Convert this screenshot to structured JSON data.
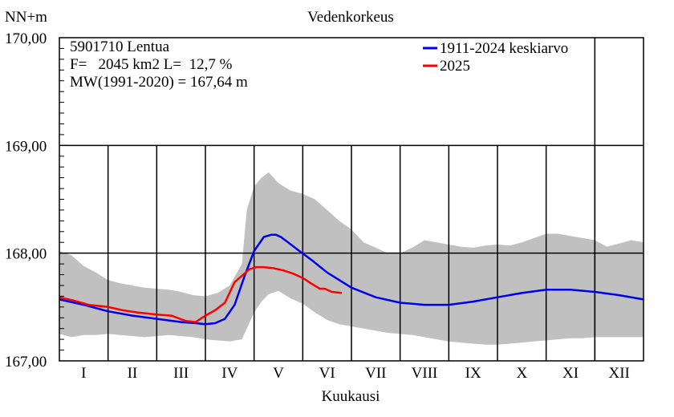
{
  "chart_data": {
    "type": "area",
    "title": "Vedenkorkeus",
    "ylabel": "NN+m",
    "xlabel": "Kuukausi",
    "ylim": [
      167.0,
      170.0
    ],
    "y_ticks": [
      {
        "value": 170.0,
        "label": "170,00"
      },
      {
        "value": 169.0,
        "label": "169,00"
      },
      {
        "value": 168.0,
        "label": "168,00"
      },
      {
        "value": 167.0,
        "label": "167,00"
      }
    ],
    "categories": [
      "I",
      "II",
      "III",
      "IV",
      "V",
      "VI",
      "VII",
      "VIII",
      "IX",
      "X",
      "XI",
      "XII"
    ],
    "info_lines": [
      "5901710 Lentua",
      "F=   2045 km2 L=  12,7 %",
      "MW(1991-2020) = 167,64 m"
    ],
    "grid": true,
    "legend_position": "top-right",
    "series": [
      {
        "name": "1911-2024 keskiarvo",
        "color": "#0000ee",
        "x": [
          0,
          0.5,
          1.0,
          1.5,
          2.0,
          2.5,
          2.8,
          3.0,
          3.2,
          3.4,
          3.6,
          3.8,
          4.0,
          4.2,
          4.35,
          4.45,
          4.55,
          4.7,
          4.9,
          5.2,
          5.5,
          6.0,
          6.5,
          7.0,
          7.5,
          8.0,
          8.5,
          9.0,
          9.5,
          10.0,
          10.5,
          11.0,
          11.5,
          12.0
        ],
        "values": [
          167.57,
          167.52,
          167.46,
          167.42,
          167.39,
          167.36,
          167.35,
          167.34,
          167.35,
          167.39,
          167.52,
          167.78,
          168.02,
          168.15,
          168.17,
          168.17,
          168.15,
          168.1,
          168.03,
          167.93,
          167.82,
          167.68,
          167.59,
          167.54,
          167.52,
          167.52,
          167.55,
          167.59,
          167.63,
          167.66,
          167.66,
          167.64,
          167.61,
          167.57
        ]
      },
      {
        "name": "2025",
        "color": "#ff0000",
        "x": [
          0,
          0.3,
          0.6,
          1.0,
          1.3,
          1.6,
          2.0,
          2.3,
          2.6,
          2.8,
          3.0,
          3.2,
          3.4,
          3.6,
          3.75,
          3.9,
          4.05,
          4.2,
          4.4,
          4.6,
          4.8,
          5.0,
          5.2,
          5.35,
          5.45,
          5.6,
          5.8
        ],
        "values": [
          167.59,
          167.56,
          167.52,
          167.5,
          167.47,
          167.45,
          167.43,
          167.42,
          167.37,
          167.36,
          167.42,
          167.47,
          167.54,
          167.73,
          167.79,
          167.85,
          167.87,
          167.87,
          167.86,
          167.84,
          167.81,
          167.77,
          167.71,
          167.67,
          167.67,
          167.64,
          167.63
        ]
      }
    ],
    "band": {
      "color": "#c0c0c0",
      "x": [
        0,
        0.25,
        0.5,
        0.75,
        1.0,
        1.25,
        1.5,
        1.75,
        2.0,
        2.25,
        2.5,
        2.75,
        3.0,
        3.25,
        3.5,
        3.75,
        3.85,
        4.0,
        4.15,
        4.3,
        4.5,
        4.75,
        5.0,
        5.25,
        5.5,
        5.75,
        6.0,
        6.25,
        6.5,
        6.75,
        7.0,
        7.25,
        7.5,
        7.75,
        8.0,
        8.25,
        8.5,
        8.75,
        9.0,
        9.25,
        9.5,
        9.75,
        10.0,
        10.25,
        10.5,
        10.75,
        11.0,
        11.25,
        11.5,
        11.75,
        12.0
      ],
      "upper": [
        168.02,
        167.98,
        167.88,
        167.82,
        167.75,
        167.72,
        167.7,
        167.68,
        167.67,
        167.66,
        167.64,
        167.61,
        167.6,
        167.63,
        167.7,
        167.9,
        168.4,
        168.62,
        168.7,
        168.75,
        168.65,
        168.58,
        168.55,
        168.5,
        168.4,
        168.3,
        168.22,
        168.1,
        168.05,
        168.0,
        168.0,
        168.05,
        168.12,
        168.1,
        168.08,
        168.06,
        168.05,
        168.07,
        168.08,
        168.07,
        168.1,
        168.14,
        168.18,
        168.18,
        168.16,
        168.14,
        168.12,
        168.06,
        168.09,
        168.12,
        168.1
      ],
      "lower": [
        167.25,
        167.22,
        167.24,
        167.24,
        167.25,
        167.24,
        167.23,
        167.22,
        167.23,
        167.24,
        167.23,
        167.22,
        167.2,
        167.19,
        167.18,
        167.2,
        167.3,
        167.45,
        167.55,
        167.62,
        167.65,
        167.58,
        167.53,
        167.45,
        167.38,
        167.34,
        167.32,
        167.3,
        167.28,
        167.26,
        167.25,
        167.24,
        167.22,
        167.2,
        167.18,
        167.17,
        167.16,
        167.15,
        167.15,
        167.16,
        167.17,
        167.18,
        167.19,
        167.2,
        167.21,
        167.21,
        167.22,
        167.22,
        167.22,
        167.22,
        167.22
      ]
    }
  }
}
